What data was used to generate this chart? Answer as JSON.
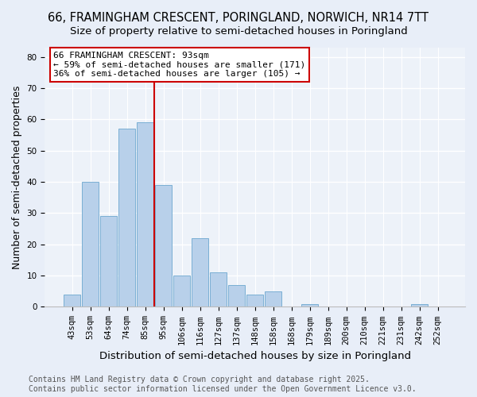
{
  "title1": "66, FRAMINGHAM CRESCENT, PORINGLAND, NORWICH, NR14 7TT",
  "title2": "Size of property relative to semi-detached houses in Poringland",
  "xlabel": "Distribution of semi-detached houses by size in Poringland",
  "ylabel": "Number of semi-detached properties",
  "categories": [
    "43sqm",
    "53sqm",
    "64sqm",
    "74sqm",
    "85sqm",
    "95sqm",
    "106sqm",
    "116sqm",
    "127sqm",
    "137sqm",
    "148sqm",
    "158sqm",
    "168sqm",
    "179sqm",
    "189sqm",
    "200sqm",
    "210sqm",
    "221sqm",
    "231sqm",
    "242sqm",
    "252sqm"
  ],
  "values": [
    4,
    40,
    29,
    57,
    59,
    39,
    10,
    22,
    11,
    7,
    4,
    5,
    0,
    1,
    0,
    0,
    0,
    0,
    0,
    1,
    0
  ],
  "bar_color": "#b8d0ea",
  "bar_edgecolor": "#7aafd4",
  "vline_x": 4.5,
  "vline_color": "#cc0000",
  "annotation_text": "66 FRAMINGHAM CRESCENT: 93sqm\n← 59% of semi-detached houses are smaller (171)\n36% of semi-detached houses are larger (105) →",
  "ylim": [
    0,
    83
  ],
  "yticks": [
    0,
    10,
    20,
    30,
    40,
    50,
    60,
    70,
    80
  ],
  "footer": "Contains HM Land Registry data © Crown copyright and database right 2025.\nContains public sector information licensed under the Open Government Licence v3.0.",
  "bg_color": "#e8eef8",
  "plot_bg_color": "#edf2f9",
  "grid_color": "#ffffff",
  "title_fontsize": 10.5,
  "subtitle_fontsize": 9.5,
  "axis_label_fontsize": 9,
  "tick_fontsize": 7.5,
  "annotation_fontsize": 8,
  "footer_fontsize": 7
}
